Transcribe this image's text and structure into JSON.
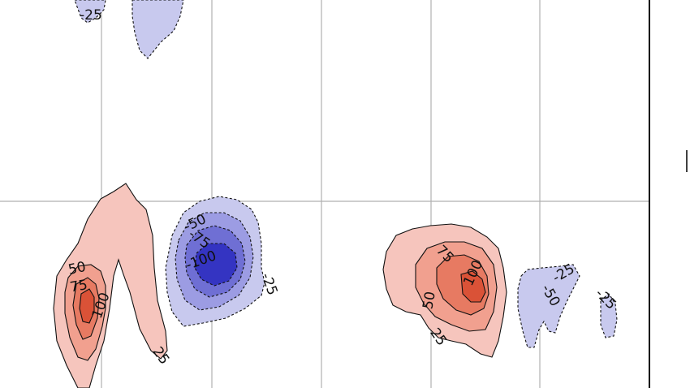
{
  "colors": {
    "neg_25": "#c8c9ee",
    "neg_50": "#9c9ce3",
    "neg_75": "#6f6fd4",
    "neg_100": "#3434c2",
    "pos_25": "#f6c5bd",
    "pos_50": "#f1a08f",
    "pos_75": "#e77a62",
    "pos_100": "#da5237",
    "grid": "#b0b0b0",
    "frame": "#000000"
  },
  "contour_levels": [
    -100,
    -75,
    -50,
    -25,
    25,
    50,
    75,
    100
  ],
  "labels": {
    "top_left_neg": "-25",
    "west_pos_50": "50",
    "west_pos_75": "75",
    "west_pos_100": "100",
    "west_pos_25": "25",
    "center_neg_50": "-50",
    "center_neg_75": "-75",
    "center_neg_100": "-100",
    "center_neg_25": "-25",
    "east_pos_75": "75",
    "east_pos_100": "100",
    "east_pos_50": "50",
    "east_pos_25": "25",
    "far_east_neg_25a": "-25",
    "far_east_neg_50": "-50",
    "far_east_neg_25b": "-25"
  }
}
